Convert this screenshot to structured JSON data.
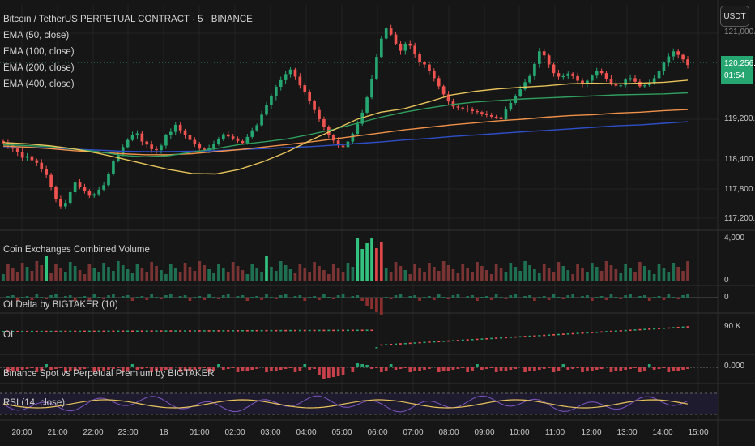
{
  "header": {
    "title": "Bitcoin / TetherUS PERPETUAL CONTRACT · 5 · BINANCE",
    "indicators": [
      {
        "label": "EMA (50, close)",
        "color": "#e7c35a"
      },
      {
        "label": "EMA (100, close)",
        "color": "#2f9e5e"
      },
      {
        "label": "EMA (200, close)",
        "color": "#f0914a"
      },
      {
        "label": "EMA (400, close)",
        "color": "#2f4fc9"
      }
    ]
  },
  "toolbar": {
    "currency_label": "USDT"
  },
  "price_tag": {
    "price": "120,256.1",
    "countdown": "01:54",
    "color": "#26a671"
  },
  "price_axis": {
    "top_partial": "121,000.0",
    "labels": [
      "119,200.0",
      "118,400.0",
      "117,800.0",
      "117,200.0"
    ]
  },
  "panes": {
    "volume": {
      "title": "Coin Exchanges Combined Volume",
      "scale_top": "4,000",
      "scale_bottom": "0"
    },
    "oi_delta": {
      "title": "OI Delta by BIGTAKER (10)",
      "scale": "0"
    },
    "oi": {
      "title": "OI",
      "scale": "90 K"
    },
    "premium": {
      "title": "Binance Spot vs Perpetual Premium by BIGTAKER",
      "scale": "0.000"
    },
    "rsi": {
      "title": "RSI (14, close)"
    }
  },
  "time_axis": {
    "labels": [
      "20:00",
      "21:00",
      "22:00",
      "23:00",
      "18",
      "01:00",
      "02:00",
      "03:00",
      "04:00",
      "05:00",
      "06:00",
      "07:00",
      "08:00",
      "09:00",
      "10:00",
      "11:00",
      "12:00",
      "13:00",
      "14:00",
      "15:00"
    ]
  },
  "colors": {
    "up": "#26a671",
    "down": "#ef5350",
    "background": "#161616",
    "grid": "#232323"
  },
  "chart_data": {
    "type": "candlestick",
    "interval": "5m",
    "close_series": [
      118730,
      118690,
      118620,
      118550,
      118440,
      118470,
      118390,
      118340,
      118220,
      118100,
      117860,
      117620,
      117480,
      117550,
      117760,
      117950,
      117870,
      117780,
      117690,
      117720,
      117810,
      117900,
      118120,
      118380,
      118500,
      118650,
      118790,
      118880,
      118920,
      118760,
      118700,
      118610,
      118590,
      118680,
      118880,
      118950,
      119090,
      118980,
      118880,
      118790,
      118710,
      118620,
      118580,
      118630,
      118720,
      118810,
      118900,
      118860,
      118820,
      118770,
      118730,
      118850,
      118980,
      119080,
      119290,
      119480,
      119650,
      119840,
      119970,
      120090,
      120180,
      120040,
      119870,
      119740,
      119560,
      119380,
      119200,
      119040,
      118880,
      118780,
      118680,
      118650,
      118760,
      118910,
      119110,
      119330,
      119630,
      120000,
      120430,
      120790,
      120990,
      120870,
      120690,
      120550,
      120690,
      120650,
      120490,
      120320,
      120280,
      120150,
      120010,
      119850,
      119690,
      119550,
      119450,
      119430,
      119410,
      119390,
      119360,
      119340,
      119300,
      119280,
      119250,
      119240,
      119200,
      119390,
      119520,
      119660,
      119790,
      119930,
      120050,
      120290,
      120540,
      120460,
      120280,
      120110,
      120040,
      120050,
      120100,
      120050,
      119960,
      119890,
      119960,
      120060,
      120150,
      120110,
      119990,
      119910,
      119860,
      119870,
      119980,
      120010,
      119940,
      119850,
      119870,
      119910,
      120010,
      120160,
      120310,
      120440,
      120540,
      120470,
      120380,
      120270
    ],
    "ema_50": [
      118740,
      118715,
      118675,
      118615,
      118530,
      118425,
      118315,
      118210,
      118130,
      118120,
      118210,
      118360,
      118550,
      118780,
      118990,
      119200,
      119340,
      119410,
      119540,
      119680,
      119750,
      119800,
      119830,
      119860,
      119900,
      119910,
      119900,
      119910,
      119930,
      119970
    ],
    "ema_100": [
      118700,
      118680,
      118660,
      118610,
      118560,
      118490,
      118460,
      118480,
      118550,
      118620,
      118700,
      118750,
      118810,
      118900,
      119000,
      119120,
      119240,
      119340,
      119420,
      119490,
      119540,
      119570,
      119600,
      119620,
      119640,
      119660,
      119680,
      119690,
      119700,
      119720
    ],
    "ema_200": [
      118670,
      118650,
      118620,
      118580,
      118550,
      118520,
      118500,
      118500,
      118520,
      118560,
      118600,
      118650,
      118700,
      118750,
      118810,
      118870,
      118930,
      118990,
      119040,
      119090,
      119130,
      119170,
      119200,
      119240,
      119270,
      119290,
      119320,
      119340,
      119370,
      119390
    ],
    "ema_400": [
      118660,
      118650,
      118630,
      118610,
      118590,
      118570,
      118560,
      118560,
      118570,
      118580,
      118600,
      118620,
      118640,
      118660,
      118690,
      118720,
      118750,
      118790,
      118820,
      118860,
      118890,
      118920,
      118950,
      118980,
      119010,
      119040,
      119070,
      119090,
      119120,
      119150
    ]
  }
}
